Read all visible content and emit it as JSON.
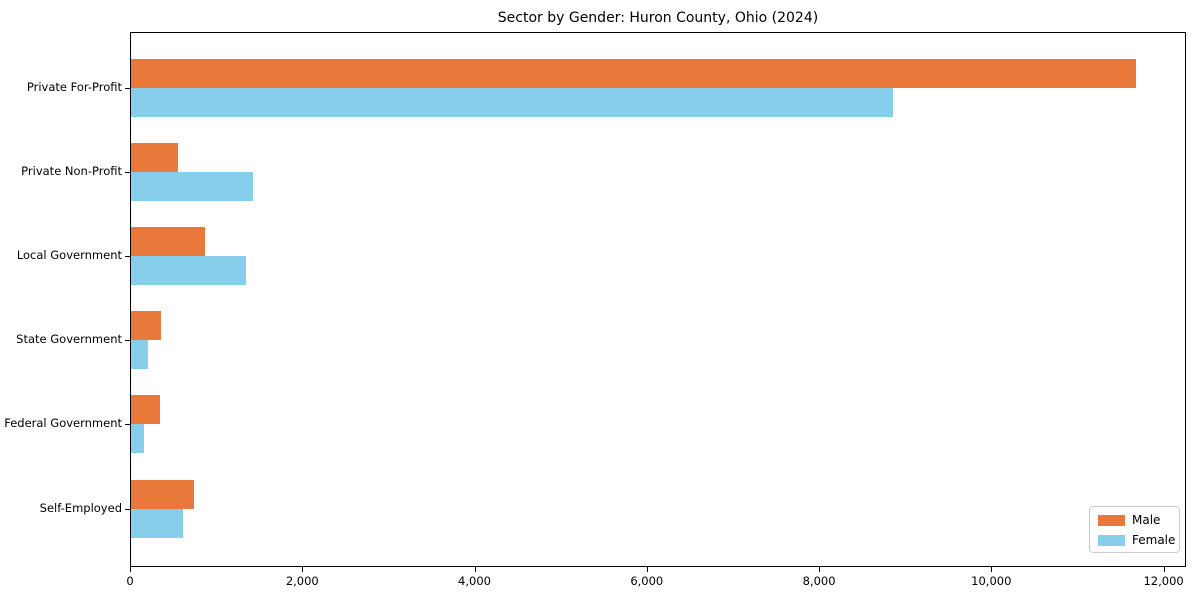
{
  "title": "Sector by Gender: Huron County, Ohio (2024)",
  "chart_data": {
    "type": "bar",
    "orientation": "horizontal",
    "title": "Sector by Gender: Huron County, Ohio (2024)",
    "categories": [
      "Private For-Profit",
      "Private Non-Profit",
      "Local Government",
      "State Government",
      "Federal Government",
      "Self-Employed"
    ],
    "series": [
      {
        "name": "Male",
        "color": "#e8793a",
        "values": [
          11670,
          550,
          860,
          350,
          340,
          730
        ]
      },
      {
        "name": "Female",
        "color": "#87ceeb",
        "values": [
          8850,
          1420,
          1340,
          200,
          150,
          600
        ]
      }
    ],
    "xlabel": "",
    "ylabel": "",
    "xlim": [
      0,
      12260
    ],
    "x_ticks": [
      0,
      2000,
      4000,
      6000,
      8000,
      10000,
      12000
    ],
    "x_tick_labels": [
      "0",
      "2,000",
      "4,000",
      "6,000",
      "8,000",
      "10,000",
      "12,000"
    ],
    "grid": false,
    "legend_position": "lower right"
  }
}
